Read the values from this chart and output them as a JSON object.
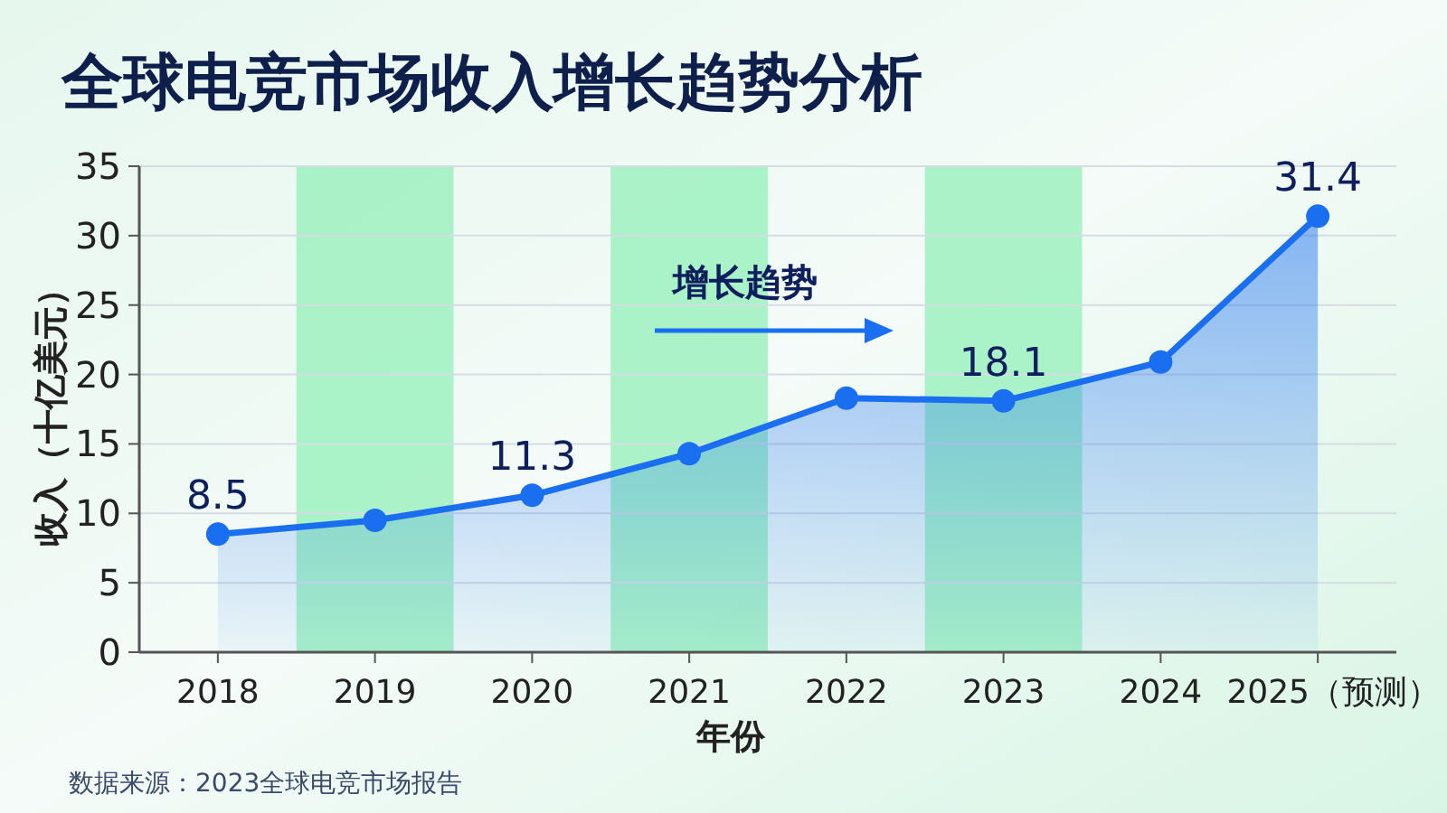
{
  "chart_data": {
    "type": "area",
    "title": "全球电竞市场收入增长趋势分析",
    "xlabel": "年份",
    "ylabel": "收入（十亿美元）",
    "categories": [
      "2018",
      "2019",
      "2020",
      "2021",
      "2022",
      "2023",
      "2024",
      "2025（预测）"
    ],
    "series": [
      {
        "color": "#1a6ff0",
        "values": [
          8.5,
          9.5,
          11.3,
          14.3,
          18.3,
          18.1,
          20.9,
          31.4
        ],
        "value_labels": [
          "8.5",
          null,
          "11.3",
          null,
          null,
          "18.1",
          null,
          "31.4"
        ]
      }
    ],
    "ylim": [
      0,
      35
    ],
    "yticks": [
      0,
      5,
      10,
      15,
      20,
      25,
      30,
      35
    ],
    "grid": "y",
    "marker": "circle",
    "bands": [
      {
        "axis": "x",
        "from": "2019",
        "to": "2019",
        "color": "#9ef0bf"
      },
      {
        "axis": "x",
        "from": "2021",
        "to": "2021",
        "color": "#9ef0bf"
      },
      {
        "axis": "x",
        "from": "2023",
        "to": "2023",
        "color": "#9ef0bf"
      }
    ],
    "annotations": [
      "增长趋势",
      "数据来源：2023全球电竞市场报告"
    ]
  }
}
